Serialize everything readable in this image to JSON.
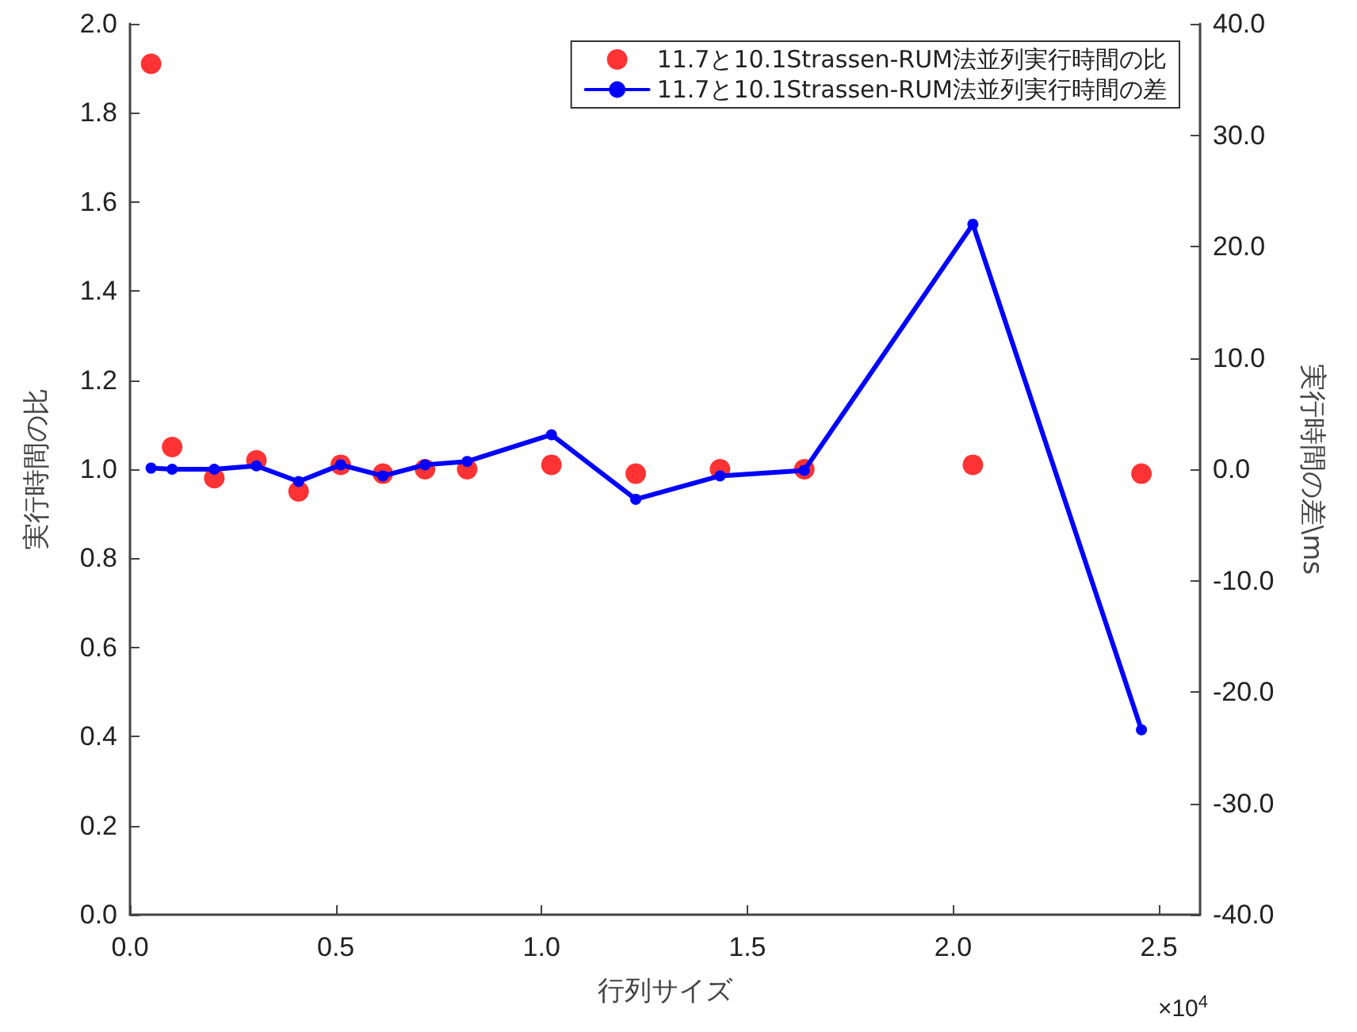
{
  "chart_data": {
    "type": "line",
    "xlabel": "行列サイズ",
    "ylabel": "実行時間の比",
    "y2label": "実行時間の差\\ms",
    "annotations": [
      "×10$^{4}$"
    ],
    "x": [
      0.0512,
      0.1024,
      0.2048,
      0.3072,
      0.4096,
      0.512,
      0.6144,
      0.7168,
      0.8192,
      1.024,
      1.2288,
      1.4336,
      1.6384,
      2.048,
      2.4576
    ],
    "series": [
      {
        "name": "11.7と10.1Strassen-RUM法並列実行時間の比",
        "type": "scatter",
        "color": "#ff0000",
        "marker": "circle",
        "values": [
          1.91,
          1.05,
          0.98,
          1.02,
          0.95,
          1.01,
          0.99,
          1.0,
          1.0,
          1.01,
          0.99,
          1.0,
          1.0,
          1.01,
          0.99
        ]
      },
      {
        "name": "11.7と10.1Strassen-RUM法並列実行時間の差",
        "type": "line",
        "axis": "y2",
        "color": "#0000ff",
        "marker": "circle",
        "line_style": "solid",
        "values": [
          0.1,
          0.0,
          0.0,
          0.3,
          -1.1,
          0.4,
          -0.6,
          0.4,
          0.7,
          3.1,
          -2.7,
          -0.6,
          -0.1,
          22.0,
          -23.4
        ]
      }
    ],
    "xlim": [
      0,
      2.6
    ],
    "xticks": [
      {
        "value": 0,
        "label": "0.0"
      },
      {
        "value": 0.5,
        "label": "0.5"
      },
      {
        "value": 1,
        "label": "1.0"
      },
      {
        "value": 1.5,
        "label": "1.5"
      },
      {
        "value": 2,
        "label": "2.0"
      },
      {
        "value": 2.5,
        "label": "2.5"
      }
    ],
    "ylim": [
      0,
      2
    ],
    "yticks": [
      {
        "value": 0,
        "label": "0.0"
      },
      {
        "value": 0.2,
        "label": "0.2"
      },
      {
        "value": 0.4,
        "label": "0.4"
      },
      {
        "value": 0.6,
        "label": "0.6"
      },
      {
        "value": 0.8,
        "label": "0.8"
      },
      {
        "value": 1,
        "label": "1.0"
      },
      {
        "value": 1.2,
        "label": "1.2"
      },
      {
        "value": 1.4,
        "label": "1.4"
      },
      {
        "value": 1.6,
        "label": "1.6"
      },
      {
        "value": 1.8,
        "label": "1.8"
      },
      {
        "value": 2,
        "label": "2.0"
      }
    ],
    "y2lim": [
      -40,
      40
    ],
    "y2ticks": [
      {
        "value": -40,
        "label": "-40.0"
      },
      {
        "value": -30,
        "label": "-30.0"
      },
      {
        "value": -20,
        "label": "-20.0"
      },
      {
        "value": -10,
        "label": "-10.0"
      },
      {
        "value": 0,
        "label": "0.0"
      },
      {
        "value": 10,
        "label": "10.0"
      },
      {
        "value": 20,
        "label": "20.0"
      },
      {
        "value": 30,
        "label": "30.0"
      },
      {
        "value": 40,
        "label": "40.0"
      }
    ],
    "grid": false,
    "legend": "top right"
  }
}
